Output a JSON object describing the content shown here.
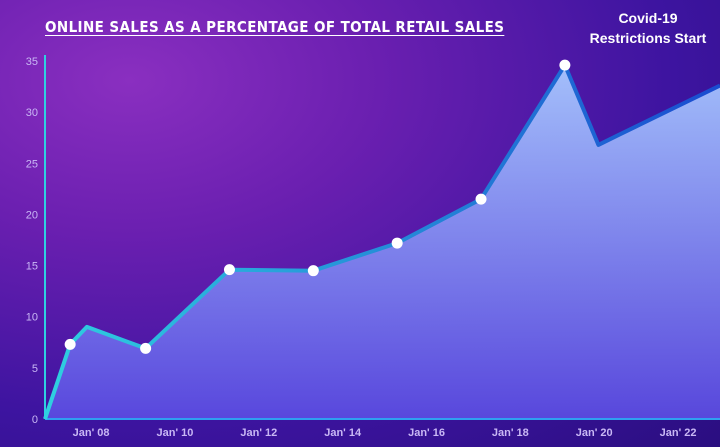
{
  "chart_data": {
    "type": "area",
    "title": "ONLINE SALES AS A PERCENTAGE OF TOTAL RETAIL SALES",
    "xlabel": "",
    "ylabel": "",
    "ylim": [
      0,
      35
    ],
    "yticks": [
      0,
      5,
      10,
      15,
      20,
      25,
      30,
      35
    ],
    "xticks": [
      {
        "label": "Jan' 08",
        "x": 2008.0
      },
      {
        "label": "Jan' 10",
        "x": 2010.0
      },
      {
        "label": "Jan' 12",
        "x": 2012.0
      },
      {
        "label": "Jan' 14",
        "x": 2014.0
      },
      {
        "label": "Jan' 16",
        "x": 2016.0
      },
      {
        "label": "Jan' 18",
        "x": 2018.0
      },
      {
        "label": "Jan' 20",
        "x": 2020.0
      },
      {
        "label": "Jan' 22",
        "x": 2022.0
      }
    ],
    "xlim": [
      2006.9,
      2023.0
    ],
    "series": [
      {
        "points": [
          {
            "x": 2006.9,
            "y": 0
          },
          {
            "x": 2007.5,
            "y": 7.3,
            "marker": true
          },
          {
            "x": 2007.9,
            "y": 9.0
          },
          {
            "x": 2009.3,
            "y": 6.9,
            "marker": true
          },
          {
            "x": 2011.3,
            "y": 14.6,
            "marker": true
          },
          {
            "x": 2013.3,
            "y": 14.5,
            "marker": true
          },
          {
            "x": 2015.3,
            "y": 17.2,
            "marker": true
          },
          {
            "x": 2017.3,
            "y": 21.5,
            "marker": true
          },
          {
            "x": 2019.3,
            "y": 34.6,
            "marker": true
          },
          {
            "x": 2020.1,
            "y": 26.8
          },
          {
            "x": 2020.6,
            "y": 27.8
          }
        ]
      }
    ],
    "annotation": {
      "lines": [
        "Covid-19",
        "Restrictions Start"
      ],
      "x": 2019.3
    },
    "grid": false,
    "colors": {
      "line_start": "#2fd0e0",
      "line_end": "#1a4bd0",
      "area_top": "#a8c8ff",
      "area_bottom": "#5a4ae0",
      "marker": "#ffffff"
    }
  }
}
